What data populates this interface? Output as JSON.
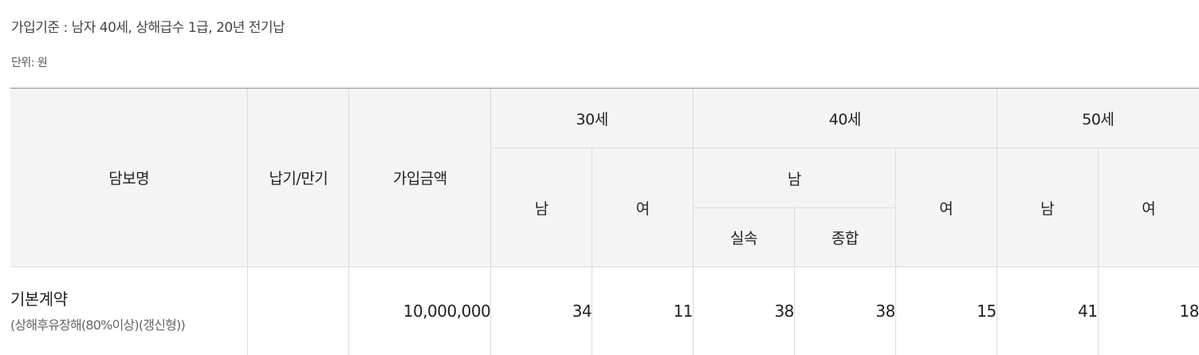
{
  "criteria": "가입기준 : 남자 40세, 상해급수 1급, 20년 전기납",
  "unit": "단위: 원",
  "table": {
    "headers": {
      "coverage": "담보명",
      "term": "납기/만기",
      "amount": "가입금액",
      "age30": "30세",
      "age40": "40세",
      "age50": "50세",
      "male": "남",
      "female": "여",
      "silson": "실속",
      "jonghap": "종합"
    },
    "rows": [
      {
        "name": "기본계약",
        "sub": "(상해후유장해(80%이상)(갱신형))",
        "term": "",
        "amount": "10,000,000",
        "age30_male": "34",
        "age30_female": "11",
        "age40_male_silson": "38",
        "age40_male_jonghap": "38",
        "age40_female": "15",
        "age50_male": "41",
        "age50_female": "18"
      }
    ]
  }
}
